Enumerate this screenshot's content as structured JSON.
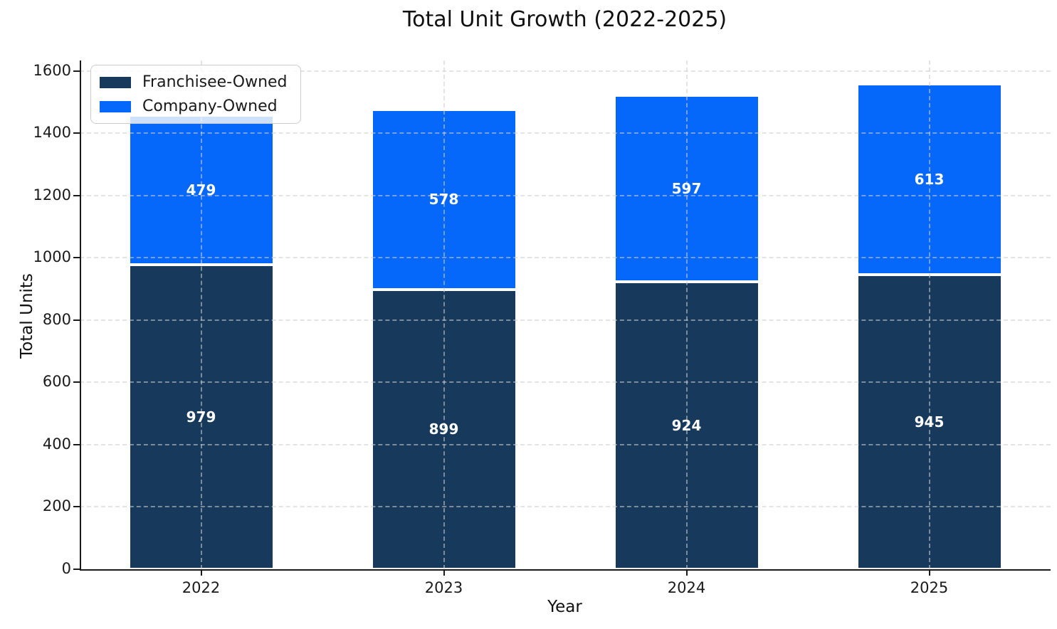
{
  "title": "Total Unit Growth (2022-2025)",
  "colors": {
    "franchisee_owned": "#173A5C",
    "company_owned": "#0667FB",
    "bar_edge": "#ffffff",
    "grid": "#cfcfcf",
    "axis": "#1a1a1a",
    "bar_label_text": "#ffffff",
    "legend_border": "#cccccc"
  },
  "legend": {
    "position": "upper left",
    "items": [
      {
        "label": "Franchisee-Owned",
        "color": "#173A5C"
      },
      {
        "label": "Company-Owned",
        "color": "#0667FB"
      }
    ]
  },
  "chart_data": {
    "type": "bar",
    "stacked": true,
    "categories": [
      "2022",
      "2023",
      "2024",
      "2025"
    ],
    "series": [
      {
        "name": "Franchisee-Owned",
        "color": "#173A5C",
        "values": [
          979,
          899,
          924,
          945
        ]
      },
      {
        "name": "Company-Owned",
        "color": "#0667FB",
        "values": [
          479,
          578,
          597,
          613
        ]
      }
    ],
    "totals": [
      1458,
      1477,
      1521,
      1558
    ],
    "title": "Total Unit Growth (2022-2025)",
    "xlabel": "Year",
    "ylabel": "Total Units",
    "ylim": [
      0,
      1634
    ],
    "yticks": [
      0,
      200,
      400,
      600,
      800,
      1000,
      1200,
      1400,
      1600
    ],
    "grid": true,
    "grid_style": "dashed",
    "bar_labels": true,
    "legend_position": "upper left"
  }
}
